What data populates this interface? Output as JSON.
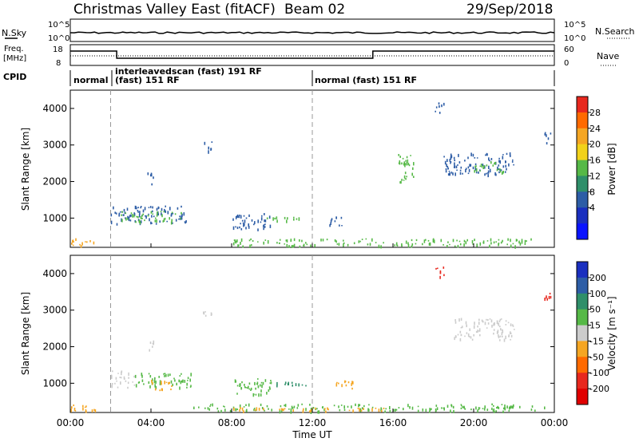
{
  "header": {
    "station": "Christmas Valley East (fitACF)",
    "beam": "Beam 02",
    "date": "29/Sep/2018"
  },
  "upper_panels": {
    "nsky_label": "N.Sky",
    "nsky_ticks": [
      "10^5",
      "10^0"
    ],
    "nsearch_label": "N.Search",
    "nsearch_ticks": [
      "10^5",
      "10^0"
    ],
    "freq_label": "Freq.",
    "freq_unit": "[MHz]",
    "freq_ticks": [
      "18",
      "8"
    ],
    "nave_label": "Nave",
    "nave_ticks": [
      "60",
      "0"
    ],
    "cpid_label": "CPID",
    "cpid_segments": [
      {
        "line1": "normal",
        "line2": ""
      },
      {
        "line1": "interleavedscan (fast) 191 RF",
        "line2": "(fast) 151 RF"
      },
      {
        "line1": "normal (fast) 151 RF",
        "line2": ""
      }
    ]
  },
  "chart_data": [
    {
      "type": "heatmap",
      "title": "",
      "quantity": "Power",
      "colorbar_label": "Power [dB]",
      "colorbar_ticks": [
        "28",
        "24",
        "20",
        "16",
        "12",
        "8",
        "4"
      ],
      "colorbar_colors": [
        "#e8281e",
        "#ff6a00",
        "#f5a623",
        "#f2d21a",
        "#56b947",
        "#2f8f6a",
        "#2d5da6",
        "#1a2fbf",
        "#0a14ff"
      ],
      "ylabel": "Slant Range [km]",
      "yticks": [
        "4000",
        "3000",
        "2000",
        "1000"
      ],
      "ylim": [
        200,
        4500
      ],
      "xlim": [
        "00:00",
        "24:00"
      ],
      "regions": [
        {
          "t": [
            0.0,
            1.5
          ],
          "r": [
            250,
            450
          ],
          "color": "#f5a623"
        },
        {
          "t": [
            2.0,
            5.8
          ],
          "r": [
            850,
            1350
          ],
          "color": "#2d5da6"
        },
        {
          "t": [
            2.5,
            5.5
          ],
          "r": [
            900,
            1200
          ],
          "color": "#56b947"
        },
        {
          "t": [
            3.8,
            4.1
          ],
          "r": [
            1900,
            2300
          ],
          "color": "#2d5da6"
        },
        {
          "t": [
            6.5,
            7.0
          ],
          "r": [
            2850,
            3100
          ],
          "color": "#2d5da6"
        },
        {
          "t": [
            8.0,
            10.0
          ],
          "r": [
            700,
            1150
          ],
          "color": "#2d5da6"
        },
        {
          "t": [
            9.5,
            12.0
          ],
          "r": [
            950,
            1050
          ],
          "color": "#56b947"
        },
        {
          "t": [
            12.8,
            13.5
          ],
          "r": [
            800,
            1100
          ],
          "color": "#2d5da6"
        },
        {
          "t": [
            8.0,
            23.0
          ],
          "r": [
            250,
            450
          ],
          "color": "#56b947"
        },
        {
          "t": [
            16.2,
            17.0
          ],
          "r": [
            2000,
            2800
          ],
          "color": "#56b947"
        },
        {
          "t": [
            18.0,
            18.5
          ],
          "r": [
            3900,
            4200
          ],
          "color": "#2d5da6"
        },
        {
          "t": [
            18.5,
            22.0
          ],
          "r": [
            2200,
            2800
          ],
          "color": "#2d5da6"
        },
        {
          "t": [
            20.0,
            21.5
          ],
          "r": [
            2250,
            2600
          ],
          "color": "#56b947"
        },
        {
          "t": [
            23.5,
            23.8
          ],
          "r": [
            3000,
            3400
          ],
          "color": "#2d5da6"
        }
      ]
    },
    {
      "type": "heatmap",
      "title": "",
      "quantity": "Velocity",
      "colorbar_label": "Velocity [m s⁻¹]",
      "colorbar_ticks": [
        "200",
        "100",
        "50",
        "15",
        "-15",
        "-50",
        "-100",
        "-200"
      ],
      "colorbar_colors": [
        "#1a2fbf",
        "#2d5da6",
        "#2f8f6a",
        "#56b947",
        "#cccccc",
        "#f5a623",
        "#ff6a00",
        "#e8281e",
        "#e00000"
      ],
      "ylabel": "Slant Range [km]",
      "yticks": [
        "4000",
        "3000",
        "2000",
        "1000"
      ],
      "ylim": [
        200,
        4500
      ],
      "xlim": [
        "00:00",
        "24:00"
      ],
      "regions": [
        {
          "t": [
            0.0,
            1.5
          ],
          "r": [
            250,
            450
          ],
          "color": "#f5a623"
        },
        {
          "t": [
            2.0,
            3.2
          ],
          "r": [
            900,
            1350
          ],
          "color": "#cccccc"
        },
        {
          "t": [
            3.2,
            6.0
          ],
          "r": [
            900,
            1300
          ],
          "color": "#56b947"
        },
        {
          "t": [
            4.0,
            5.0
          ],
          "r": [
            800,
            1100
          ],
          "color": "#f5a623"
        },
        {
          "t": [
            3.8,
            4.1
          ],
          "r": [
            1900,
            2300
          ],
          "color": "#cccccc"
        },
        {
          "t": [
            6.5,
            7.0
          ],
          "r": [
            2850,
            3100
          ],
          "color": "#cccccc"
        },
        {
          "t": [
            8.0,
            10.0
          ],
          "r": [
            700,
            1150
          ],
          "color": "#56b947"
        },
        {
          "t": [
            9.5,
            12.0
          ],
          "r": [
            950,
            1050
          ],
          "color": "#2f8f6a"
        },
        {
          "t": [
            13.0,
            14.0
          ],
          "r": [
            850,
            1100
          ],
          "color": "#f5a623"
        },
        {
          "t": [
            6.0,
            23.5
          ],
          "r": [
            250,
            450
          ],
          "color": "#56b947"
        },
        {
          "t": [
            8.0,
            16.0
          ],
          "r": [
            250,
            350
          ],
          "color": "#f5a623"
        },
        {
          "t": [
            18.0,
            18.5
          ],
          "r": [
            3900,
            4200
          ],
          "color": "#e8281e"
        },
        {
          "t": [
            19.0,
            22.0
          ],
          "r": [
            2200,
            2800
          ],
          "color": "#cccccc"
        },
        {
          "t": [
            23.5,
            23.8
          ],
          "r": [
            3300,
            3500
          ],
          "color": "#e8281e"
        }
      ]
    }
  ],
  "xaxis": {
    "label": "Time UT",
    "ticks": [
      "00:00",
      "04:00",
      "08:00",
      "12:00",
      "16:00",
      "20:00",
      "00:00"
    ]
  }
}
